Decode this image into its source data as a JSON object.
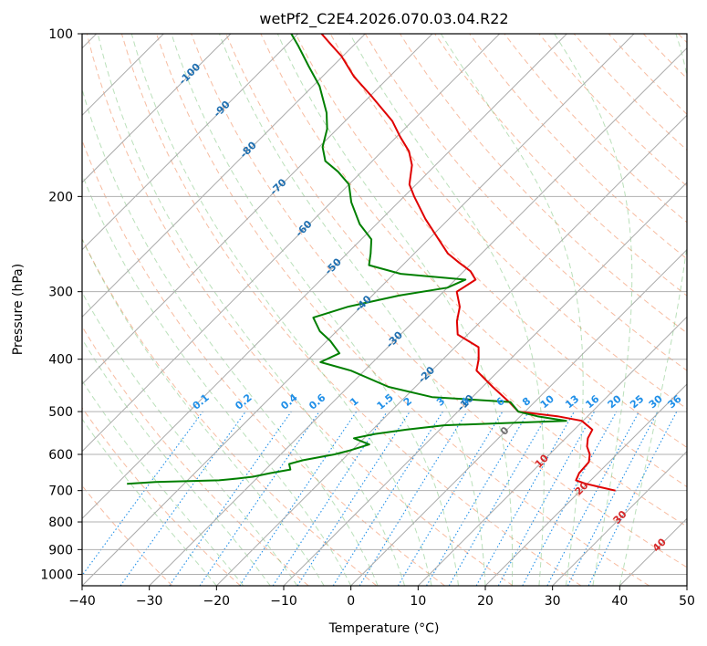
{
  "chart_data": {
    "type": "line",
    "title": "wetPf2_C2E4.2026.070.03.04.R22",
    "xlabel": "Temperature (°C)",
    "ylabel": "Pressure (hPa)",
    "xlim": [
      -40,
      50
    ],
    "ylim": [
      1050,
      100
    ],
    "y_scale": "log",
    "grid": true,
    "x_ticks": [
      -40,
      -30,
      -20,
      -10,
      0,
      10,
      20,
      30,
      40,
      50
    ],
    "x_tick_labels": [
      "−40",
      "−30",
      "−20",
      "−10",
      "0",
      "10",
      "20",
      "30",
      "40",
      "50"
    ],
    "y_ticks": [
      100,
      200,
      300,
      400,
      500,
      600,
      700,
      800,
      900,
      1000
    ],
    "y_tick_labels": [
      "100",
      "200",
      "300",
      "400",
      "500",
      "600",
      "700",
      "800",
      "900",
      "1000"
    ],
    "isotherm_labels": [
      {
        "value": -100,
        "text": "-100",
        "p": 118
      },
      {
        "value": -90,
        "text": "-90",
        "p": 137
      },
      {
        "value": -80,
        "text": "-80",
        "p": 163
      },
      {
        "value": -70,
        "text": "-70",
        "p": 191
      },
      {
        "value": -60,
        "text": "-60",
        "p": 228
      },
      {
        "value": -50,
        "text": "-50",
        "p": 268
      },
      {
        "value": -40,
        "text": "-40",
        "p": 314
      },
      {
        "value": -30,
        "text": "-30",
        "p": 366
      },
      {
        "value": -20,
        "text": "-20",
        "p": 425
      },
      {
        "value": -10,
        "text": "-10",
        "p": 479
      },
      {
        "value": 0,
        "text": "0",
        "p": 540
      },
      {
        "value": 10,
        "text": "10",
        "p": 614
      },
      {
        "value": 20,
        "text": "20",
        "p": 690
      },
      {
        "value": 30,
        "text": "30",
        "p": 780
      },
      {
        "value": 40,
        "text": "40",
        "p": 878
      }
    ],
    "mixing_ratio_labels": [
      "0.1",
      "0.2",
      "0.4",
      "0.6",
      "1",
      "1.5",
      "2",
      "3",
      "4",
      "6",
      "8",
      "10",
      "13",
      "16",
      "20",
      "25",
      "30",
      "36"
    ],
    "mixing_ratio_values": [
      0.1,
      0.2,
      0.4,
      0.6,
      1,
      1.5,
      2,
      3,
      4,
      6,
      8,
      10,
      13,
      16,
      20,
      25,
      30,
      36
    ],
    "mixing_ratio_label_pressure": 500,
    "series": [
      {
        "color": "#e00000",
        "points": [
          [
            700,
            25.2
          ],
          [
            690,
            22.5
          ],
          [
            680,
            19.8
          ],
          [
            670,
            17.8
          ],
          [
            650,
            17.2
          ],
          [
            620,
            17.0
          ],
          [
            600,
            16.0
          ],
          [
            580,
            14.4
          ],
          [
            560,
            13.3
          ],
          [
            540,
            12.7
          ],
          [
            520,
            9.8
          ],
          [
            510,
            5.5
          ],
          [
            500,
            -1.0
          ],
          [
            480,
            -3.8
          ],
          [
            450,
            -8.5
          ],
          [
            420,
            -13.3
          ],
          [
            400,
            -14.7
          ],
          [
            380,
            -16.5
          ],
          [
            360,
            -21.5
          ],
          [
            340,
            -23.6
          ],
          [
            320,
            -25.3
          ],
          [
            300,
            -28.0
          ],
          [
            285,
            -27.0
          ],
          [
            275,
            -29.0
          ],
          [
            265,
            -32.0
          ],
          [
            255,
            -35.0
          ],
          [
            240,
            -38.5
          ],
          [
            220,
            -43.5
          ],
          [
            200,
            -48.5
          ],
          [
            190,
            -51.0
          ],
          [
            175,
            -53.5
          ],
          [
            165,
            -56.0
          ],
          [
            155,
            -59.5
          ],
          [
            145,
            -63.0
          ],
          [
            130,
            -70.0
          ],
          [
            120,
            -75.3
          ],
          [
            110,
            -80.2
          ],
          [
            105,
            -83.3
          ],
          [
            100,
            -86.5
          ]
        ]
      },
      {
        "color": "#007f00",
        "points": [
          [
            680,
            -48.5
          ],
          [
            675,
            -44.5
          ],
          [
            670,
            -35.3
          ],
          [
            665,
            -32.9
          ],
          [
            660,
            -30.8
          ],
          [
            650,
            -28.8
          ],
          [
            640,
            -26.3
          ],
          [
            625,
            -27.3
          ],
          [
            615,
            -25.8
          ],
          [
            600,
            -22.0
          ],
          [
            590,
            -20.3
          ],
          [
            575,
            -18.3
          ],
          [
            560,
            -21.5
          ],
          [
            550,
            -19.0
          ],
          [
            540,
            -15.0
          ],
          [
            530,
            -10.0
          ],
          [
            520,
            7.5
          ],
          [
            510,
            2.5
          ],
          [
            500,
            -1.0
          ],
          [
            480,
            -3.6
          ],
          [
            470,
            -16.0
          ],
          [
            450,
            -24.0
          ],
          [
            420,
            -32.0
          ],
          [
            405,
            -37.8
          ],
          [
            390,
            -36.3
          ],
          [
            370,
            -39.5
          ],
          [
            355,
            -42.5
          ],
          [
            335,
            -45.5
          ],
          [
            320,
            -42.0
          ],
          [
            305,
            -36.0
          ],
          [
            295,
            -30.0
          ],
          [
            285,
            -28.5
          ],
          [
            278,
            -39.0
          ],
          [
            268,
            -45.0
          ],
          [
            255,
            -46.5
          ],
          [
            240,
            -48.5
          ],
          [
            225,
            -52.5
          ],
          [
            205,
            -57.0
          ],
          [
            190,
            -60.0
          ],
          [
            180,
            -63.5
          ],
          [
            172,
            -67.0
          ],
          [
            162,
            -69.5
          ],
          [
            150,
            -71.5
          ],
          [
            140,
            -74.0
          ],
          [
            125,
            -79.0
          ],
          [
            115,
            -83.5
          ],
          [
            105,
            -88.3
          ],
          [
            100,
            -91.0
          ]
        ]
      }
    ]
  }
}
